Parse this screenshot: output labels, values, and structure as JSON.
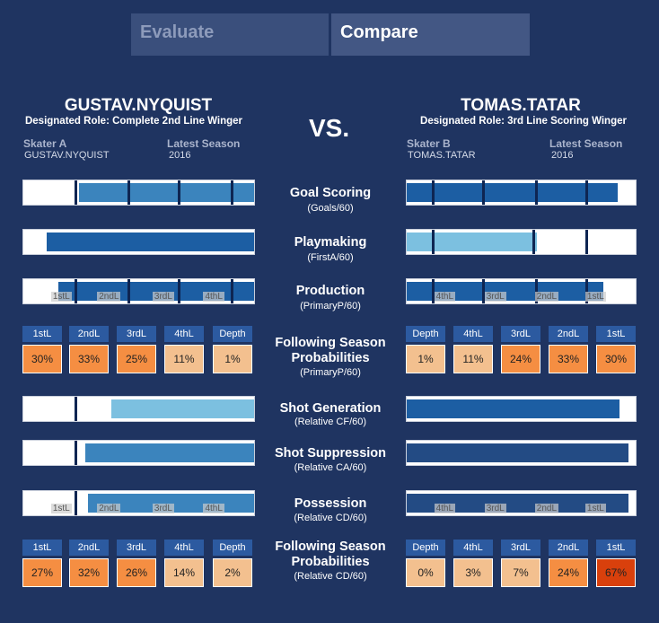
{
  "tabs": [
    {
      "label": "Evaluate",
      "active": false
    },
    {
      "label": "Compare",
      "active": true
    }
  ],
  "vs_label": "VS.",
  "player_a": {
    "name": "GUSTAV.NYQUIST",
    "role": "Designated Role: Complete 2nd Line Winger",
    "skater_label": "Skater A",
    "skater_value": "GUSTAV.NYQUIST",
    "season_label": "Latest Season",
    "season_value": "2016"
  },
  "player_b": {
    "name": "TOMAS.TATAR",
    "role": "Designated Role: 3rd Line Scoring Winger",
    "skater_label": "Skater B",
    "skater_value": "TOMAS.TATAR",
    "season_label": "Latest Season",
    "season_value": "2016"
  },
  "metrics": {
    "goal_scoring": {
      "title": "Goal Scoring",
      "sub": "(Goals/60)"
    },
    "playmaking": {
      "title": "Playmaking",
      "sub": "(FirstA/60)"
    },
    "production": {
      "title": "Production",
      "sub": "(PrimaryP/60)"
    },
    "prob1": {
      "title1": "Following Season",
      "title2": "Probabilities",
      "sub": "(PrimaryP/60)"
    },
    "shot_generation": {
      "title": "Shot Generation",
      "sub": "(Relative CF/60)"
    },
    "shot_suppression": {
      "title": "Shot Suppression",
      "sub": "(Relative CA/60)"
    },
    "possession": {
      "title": "Possession",
      "sub": "(Relative CD/60)"
    },
    "prob2": {
      "title1": "Following Season",
      "title2": "Probabilities",
      "sub": "(Relative CD/60)"
    }
  },
  "colors": {
    "dark_blue": "#1c5ea3",
    "mid_blue": "#3b84bd",
    "light_blue": "#7cc0e0",
    "navy": "#234b84",
    "prob_high": "#f58e42",
    "prob_low": "#f3c08f",
    "prob_max": "#d9400c"
  },
  "bars": [
    {
      "top": 200,
      "a": {
        "from": 0.24,
        "to": 1.0,
        "color": "mid_blue",
        "ticks": [
          0.22,
          0.45,
          0.67,
          0.9
        ],
        "labels": []
      },
      "b": {
        "from": 0.0,
        "to": 0.92,
        "color": "dark_blue",
        "ticks": [
          0.11,
          0.33,
          0.56,
          0.78
        ],
        "labels": []
      }
    },
    {
      "top": 255,
      "a": {
        "from": 0.1,
        "to": 1.0,
        "color": "dark_blue",
        "ticks": [],
        "labels": []
      },
      "b": {
        "from": 0.0,
        "to": 0.57,
        "color": "light_blue",
        "ticks": [
          0.11,
          0.55,
          0.78
        ],
        "labels": []
      }
    },
    {
      "top": 310,
      "a": {
        "from": 0.15,
        "to": 1.0,
        "color": "dark_blue",
        "ticks": [
          0.22,
          0.45,
          0.67,
          0.9
        ],
        "labels": [
          "1stL",
          "2ndL",
          "3rdL",
          "4thL"
        ]
      },
      "b": {
        "from": 0.0,
        "to": 0.86,
        "color": "dark_blue",
        "ticks": [
          0.11,
          0.33,
          0.56,
          0.78
        ],
        "labels": [
          "4thL",
          "3rdL",
          "2ndL",
          "1stL"
        ]
      }
    },
    {
      "top": 441,
      "a": {
        "from": 0.38,
        "to": 1.0,
        "color": "light_blue",
        "ticks": [
          0.22
        ],
        "labels": []
      },
      "b": {
        "from": 0.0,
        "to": 0.93,
        "color": "dark_blue",
        "ticks": [],
        "labels": []
      }
    },
    {
      "top": 490,
      "a": {
        "from": 0.27,
        "to": 1.0,
        "color": "mid_blue",
        "ticks": [
          0.22
        ],
        "labels": []
      },
      "b": {
        "from": 0.0,
        "to": 0.97,
        "color": "navy",
        "ticks": [],
        "labels": []
      }
    },
    {
      "top": 546,
      "a": {
        "from": 0.28,
        "to": 1.0,
        "color": "mid_blue",
        "ticks": [
          0.22
        ],
        "labels": [
          "1stL",
          "2ndL",
          "3rdL",
          "4thL"
        ]
      },
      "b": {
        "from": 0.0,
        "to": 0.97,
        "color": "navy",
        "ticks": [],
        "labels": [
          "4thL",
          "3rdL",
          "2ndL",
          "1stL"
        ]
      }
    }
  ],
  "prob_tables": [
    {
      "a": [
        {
          "h": "1stL",
          "v": "30%",
          "c": "prob_high"
        },
        {
          "h": "2ndL",
          "v": "33%",
          "c": "prob_high"
        },
        {
          "h": "3rdL",
          "v": "25%",
          "c": "prob_high"
        },
        {
          "h": "4thL",
          "v": "11%",
          "c": "prob_low"
        },
        {
          "h": "Depth",
          "v": "1%",
          "c": "prob_low"
        }
      ],
      "b": [
        {
          "h": "Depth",
          "v": "1%",
          "c": "prob_low"
        },
        {
          "h": "4thL",
          "v": "11%",
          "c": "prob_low"
        },
        {
          "h": "3rdL",
          "v": "24%",
          "c": "prob_high"
        },
        {
          "h": "2ndL",
          "v": "33%",
          "c": "prob_high"
        },
        {
          "h": "1stL",
          "v": "30%",
          "c": "prob_high"
        }
      ]
    },
    {
      "a": [
        {
          "h": "1stL",
          "v": "27%",
          "c": "prob_high"
        },
        {
          "h": "2ndL",
          "v": "32%",
          "c": "prob_high"
        },
        {
          "h": "3rdL",
          "v": "26%",
          "c": "prob_high"
        },
        {
          "h": "4thL",
          "v": "14%",
          "c": "prob_low"
        },
        {
          "h": "Depth",
          "v": "2%",
          "c": "prob_low"
        }
      ],
      "b": [
        {
          "h": "Depth",
          "v": "0%",
          "c": "prob_low"
        },
        {
          "h": "4thL",
          "v": "3%",
          "c": "prob_low"
        },
        {
          "h": "3rdL",
          "v": "7%",
          "c": "prob_low"
        },
        {
          "h": "2ndL",
          "v": "24%",
          "c": "prob_high"
        },
        {
          "h": "1stL",
          "v": "67%",
          "c": "prob_max"
        }
      ]
    }
  ]
}
